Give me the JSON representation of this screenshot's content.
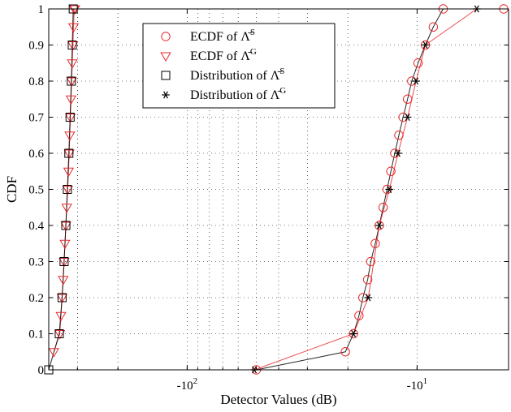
{
  "chart_data": {
    "type": "line",
    "title": "",
    "xlabel": "Detector Values (dB)",
    "ylabel": "CDF",
    "x_scale": "negative-log",
    "xlim": [
      -400,
      -4
    ],
    "ylim": [
      0,
      1
    ],
    "grid": true,
    "legend_position": "top-left",
    "x_tick_labels": [
      {
        "value": -100,
        "label": "-10",
        "sup": "2"
      },
      {
        "value": -10,
        "label": "-10",
        "sup": "1"
      }
    ],
    "y_ticks": [
      0,
      0.1,
      0.2,
      0.3,
      0.4,
      0.5,
      0.6,
      0.7,
      0.8,
      0.9,
      1
    ],
    "y_tick_labels": [
      "0",
      "0.1",
      "0.2",
      "0.3",
      "0.4",
      "0.5",
      "0.6",
      "0.7",
      "0.8",
      "0.9",
      "1"
    ],
    "series": [
      {
        "name": "ECDF of Λ̄ˢ",
        "legend_label": {
          "prefix": "ECDF of ",
          "symbol": "Λ̄",
          "sup": "S"
        },
        "marker": "circle",
        "color": "#e8292b",
        "x": [
          -50,
          -20.5,
          -18.9,
          -17.9,
          -17.2,
          -16.4,
          -15.9,
          -15.2,
          -14.6,
          -14.05,
          -13.5,
          -13.0,
          -12.5,
          -12.0,
          -11.5,
          -11.0,
          -10.55,
          -9.9,
          -9.2,
          -8.5,
          -7.7,
          -4.2
        ],
        "y": [
          0,
          0.05,
          0.1,
          0.15,
          0.2,
          0.25,
          0.3,
          0.35,
          0.4,
          0.45,
          0.5,
          0.55,
          0.6,
          0.65,
          0.7,
          0.75,
          0.8,
          0.85,
          0.9,
          0.95,
          1.0,
          1.0
        ]
      },
      {
        "name": "ECDF of Λ̄ᴳ",
        "legend_label": {
          "prefix": "ECDF of ",
          "symbol": "Λ̄",
          "sup": "G"
        },
        "marker": "triangle-down",
        "color": "#e8292b",
        "x": [
          -380,
          -358,
          -354,
          -350,
          -346,
          -343,
          -340,
          -337,
          -334,
          -331,
          -328,
          -326,
          -324,
          -322,
          -320,
          -318,
          -316,
          -314,
          -312,
          -310,
          -308
        ],
        "y": [
          0.05,
          0.1,
          0.15,
          0.2,
          0.25,
          0.3,
          0.35,
          0.4,
          0.45,
          0.5,
          0.55,
          0.6,
          0.65,
          0.7,
          0.75,
          0.8,
          0.85,
          0.9,
          0.95,
          1.0,
          1.0
        ]
      },
      {
        "name": "Distribution of Λ̄ˢ",
        "legend_label": {
          "prefix": "Distribution of ",
          "symbol": "Λ̄",
          "sup": "S"
        },
        "marker": "square",
        "color": "#000000",
        "x": [
          -400,
          -360,
          -350,
          -343,
          -337,
          -332,
          -327,
          -323,
          -319,
          -316,
          -313
        ],
        "y": [
          0,
          0.1,
          0.2,
          0.3,
          0.4,
          0.5,
          0.6,
          0.7,
          0.8,
          0.9,
          1.0
        ]
      },
      {
        "name": "Distribution of Λ̄ᴳ",
        "legend_label": {
          "prefix": "Distribution of ",
          "symbol": "Λ̄",
          "sup": "G"
        },
        "marker": "asterisk",
        "color": "#000000",
        "x": [
          -51,
          -18.9,
          -16.3,
          -14.6,
          -13.2,
          -12.1,
          -11.0,
          -10.1,
          -9.2,
          -5.5
        ],
        "y": [
          0,
          0.1,
          0.2,
          0.4,
          0.5,
          0.6,
          0.7,
          0.8,
          0.9,
          1.0
        ]
      }
    ]
  }
}
